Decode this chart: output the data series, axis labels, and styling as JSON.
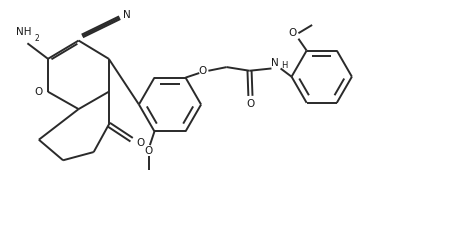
{
  "bg_color": "#ffffff",
  "line_color": "#2a2a2a",
  "line_width": 1.4,
  "figsize": [
    4.57,
    2.52
  ],
  "dpi": 100,
  "xlim": [
    0,
    10
  ],
  "ylim": [
    0,
    5.5
  ]
}
